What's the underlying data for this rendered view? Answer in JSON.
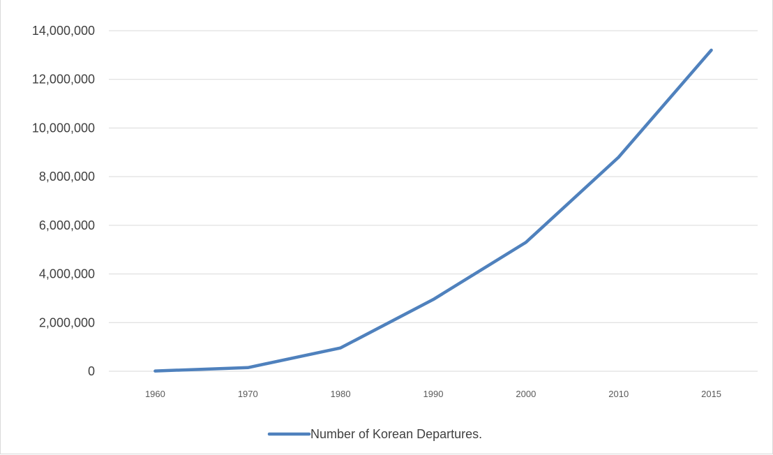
{
  "chart_data": {
    "type": "line",
    "title": "",
    "xlabel": "",
    "ylabel": "",
    "categories": [
      "1960",
      "1970",
      "1980",
      "1990",
      "2000",
      "2010",
      "2015"
    ],
    "series": [
      {
        "name": "Number of Korean Departures.",
        "color": "#4f81bd",
        "values": [
          11000,
          150000,
          960000,
          2950000,
          5300000,
          8800000,
          13200000
        ]
      }
    ],
    "ylim": [
      0,
      14000000
    ],
    "y_ticks": [
      "0",
      "2,000,000",
      "4,000,000",
      "6,000,000",
      "8,000,000",
      "10,000,000",
      "12,000,000",
      "14,000,000"
    ],
    "y_tick_values": [
      0,
      2000000,
      4000000,
      6000000,
      8000000,
      10000000,
      12000000,
      14000000
    ],
    "grid": true,
    "legend_position": "bottom"
  }
}
